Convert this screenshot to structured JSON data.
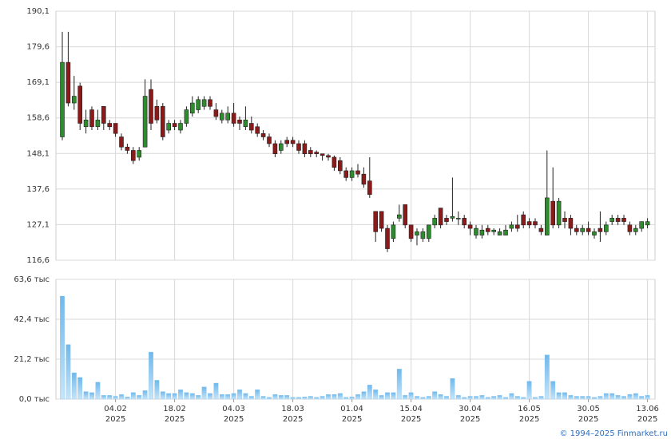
{
  "chart_data": [
    {
      "type": "candlestick",
      "open": [
        153,
        175,
        163,
        168,
        156,
        161,
        156,
        162,
        157,
        157,
        153,
        150,
        149,
        147,
        150,
        167,
        162,
        162,
        155,
        157,
        155,
        157,
        160,
        161,
        162,
        164,
        161,
        158,
        158,
        160,
        158,
        156,
        157,
        156,
        154,
        153,
        151,
        149,
        152,
        152,
        151,
        151,
        149,
        148.5,
        148,
        147.5,
        147,
        146,
        143,
        141,
        143,
        142,
        140,
        131,
        131,
        126,
        123,
        129,
        133,
        127,
        124,
        123,
        123,
        127,
        132,
        129,
        129,
        129,
        129,
        127,
        124,
        124,
        126,
        125,
        124,
        124,
        126,
        127,
        130,
        128,
        128,
        126,
        124,
        134,
        127,
        129,
        129,
        126,
        125,
        126,
        124,
        126,
        125,
        128,
        129,
        129,
        127,
        125,
        126,
        127
      ],
      "high": [
        184,
        184,
        171,
        169,
        161,
        162,
        161,
        162,
        158,
        157,
        154,
        151,
        150,
        150,
        170,
        170,
        164,
        163,
        158,
        158,
        158,
        162,
        165,
        165,
        165,
        165,
        163,
        161,
        162,
        163,
        159,
        162,
        159,
        157,
        155,
        154,
        152,
        152,
        153,
        153,
        152,
        152,
        150,
        149,
        148,
        148,
        147.5,
        147,
        144,
        144,
        145,
        144,
        147,
        131,
        131,
        127,
        128,
        133,
        133,
        127,
        126,
        126,
        127,
        130,
        132,
        130,
        141,
        131,
        130,
        128,
        127,
        127,
        127,
        126,
        126,
        127,
        128,
        130,
        131,
        129,
        129,
        127,
        149,
        144,
        135,
        131,
        130,
        127,
        127,
        128,
        126,
        131,
        128,
        130,
        130,
        130,
        128,
        127,
        128,
        129
      ],
      "low": [
        152,
        162,
        161,
        155,
        154,
        155,
        155,
        155,
        155,
        153,
        149,
        148,
        145,
        146,
        150,
        155,
        157,
        152,
        154,
        155,
        154,
        156,
        159,
        160,
        161,
        161,
        158,
        157,
        157,
        156,
        155,
        155,
        154,
        153,
        152,
        150,
        147,
        148,
        150,
        150,
        148,
        147,
        147,
        147,
        146,
        146,
        143,
        142,
        140,
        140,
        141,
        138,
        135,
        122,
        125,
        119,
        122,
        128,
        126,
        122,
        121,
        122,
        122,
        126,
        126,
        127,
        128,
        127,
        126,
        124,
        123,
        123,
        124,
        124,
        124,
        124,
        125,
        125,
        126,
        126,
        126,
        124,
        124,
        126,
        126,
        126,
        124,
        124,
        124,
        124,
        123,
        122,
        124,
        127,
        127,
        127,
        124,
        124,
        125,
        126
      ],
      "close": [
        175,
        163,
        165,
        157,
        158,
        156,
        158,
        157,
        156,
        154,
        150,
        149,
        146,
        149,
        165,
        157,
        158,
        153,
        157,
        156,
        157,
        161,
        163,
        164,
        164,
        162,
        159,
        160,
        160,
        157,
        157,
        158,
        155,
        154,
        153,
        151,
        148,
        151,
        151,
        151,
        149,
        148,
        148,
        148,
        147.5,
        147,
        144,
        143,
        141,
        143,
        142,
        139,
        136,
        125,
        126,
        120,
        127,
        130,
        127,
        123,
        125,
        125,
        127,
        129,
        127,
        128,
        129.5,
        129,
        127,
        126,
        126,
        125.5,
        125,
        125.5,
        125,
        125.5,
        127,
        126,
        127,
        127,
        127,
        125,
        135,
        127,
        134,
        128,
        126,
        125,
        126,
        125,
        125,
        125,
        127,
        129,
        128,
        128,
        125,
        126,
        128,
        128
      ],
      "up_color": "#2e8b2e",
      "down_color": "#8b1a1a",
      "ylim": [
        116.6,
        190.1
      ],
      "yticks": [
        {
          "value": 116.6,
          "label": "116,6"
        },
        {
          "value": 127.1,
          "label": "127,1"
        },
        {
          "value": 137.6,
          "label": "137,6"
        },
        {
          "value": 148.1,
          "label": "148,1"
        },
        {
          "value": 158.6,
          "label": "158,6"
        },
        {
          "value": 169.1,
          "label": "169,1"
        },
        {
          "value": 179.6,
          "label": "179,6"
        },
        {
          "value": 190.1,
          "label": "190,1"
        }
      ],
      "grid": true
    },
    {
      "type": "bar",
      "categories": [
        null,
        null,
        null,
        null,
        null,
        null,
        null,
        null,
        null,
        [
          "04.02",
          "2025"
        ],
        null,
        null,
        null,
        null,
        null,
        null,
        null,
        null,
        null,
        [
          "18.02",
          "2025"
        ],
        null,
        null,
        null,
        null,
        null,
        null,
        null,
        null,
        null,
        [
          "04.03",
          "2025"
        ],
        null,
        null,
        null,
        null,
        null,
        null,
        null,
        null,
        null,
        [
          "18.03",
          "2025"
        ],
        null,
        null,
        null,
        null,
        null,
        null,
        null,
        null,
        null,
        [
          "01.04",
          "2025"
        ],
        null,
        null,
        null,
        null,
        null,
        null,
        null,
        null,
        null,
        [
          "15.04",
          "2025"
        ],
        null,
        null,
        null,
        null,
        null,
        null,
        null,
        null,
        null,
        [
          "30.04",
          "2025"
        ],
        null,
        null,
        null,
        null,
        null,
        null,
        null,
        null,
        null,
        [
          "16.05",
          "2025"
        ],
        null,
        null,
        null,
        null,
        null,
        null,
        null,
        null,
        null,
        [
          "30.05",
          "2025"
        ],
        null,
        null,
        null,
        null,
        null,
        null,
        null,
        null,
        null,
        [
          "13.06",
          "2025"
        ]
      ],
      "values": [
        54.7,
        29,
        14,
        11.5,
        4,
        3.5,
        9,
        2,
        2,
        1.5,
        2.5,
        1.2,
        3.5,
        2,
        4.5,
        25,
        10,
        4,
        3,
        3,
        5,
        3.5,
        3,
        2,
        6.5,
        3,
        8.5,
        2.5,
        2.5,
        3,
        5,
        3,
        1.5,
        5,
        1.5,
        1,
        2.5,
        2,
        2,
        1,
        1,
        1.2,
        1.5,
        1,
        1.5,
        2.5,
        2.5,
        3,
        1,
        1.2,
        2.5,
        4,
        7.5,
        5,
        2,
        3.5,
        3.5,
        16,
        2,
        3.5,
        1.5,
        1,
        1.5,
        4,
        2.5,
        1.5,
        11,
        2,
        1,
        1.5,
        1.5,
        2,
        1,
        1.5,
        2,
        1,
        3,
        1.5,
        1,
        9.5,
        1,
        1.5,
        23.5,
        9.5,
        3.5,
        3.5,
        2,
        1.5,
        1.5,
        1.5,
        1,
        1.5,
        3,
        3,
        2,
        1.5,
        2.5,
        3,
        1.5,
        2
      ],
      "color": "#8ec9f0",
      "ylim": [
        0,
        63.6
      ],
      "yticks": [
        {
          "value": 0,
          "label": "0,0 тыс"
        },
        {
          "value": 21.2,
          "label": "21,2 тыс"
        },
        {
          "value": 42.4,
          "label": "42,4 тыс"
        },
        {
          "value": 63.6,
          "label": "63,6 тыс"
        }
      ],
      "grid": true
    }
  ],
  "footer": "© 1994–2025 Finmarket.ru"
}
